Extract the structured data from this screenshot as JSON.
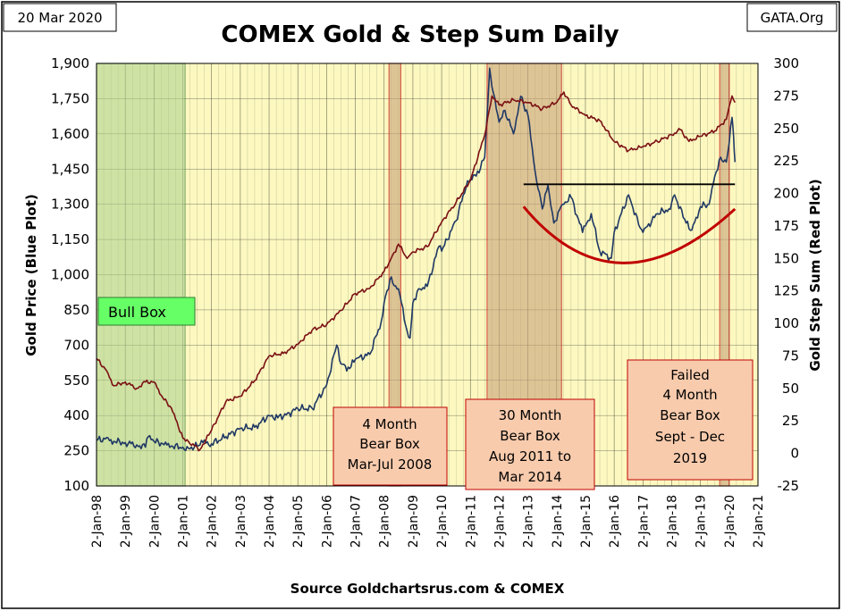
{
  "header": {
    "date": "20 Mar 2020",
    "title": "COMEX Gold & Step Sum Daily",
    "brand": "GATA.Org"
  },
  "footer": {
    "source": "Source Goldchartsrus.com & COMEX"
  },
  "colors": {
    "plot_bg": "#fcf8c0",
    "gold_line": "#1f3864",
    "step_line": "#7b1014",
    "bull_box": "#a9d18e",
    "bear_box": "#c9a27a",
    "callout_bg": "#f8cbad",
    "callout_border": "#c00000",
    "arc": "#c00000"
  },
  "chart_data": {
    "type": "line",
    "title": "COMEX Gold & Step Sum Daily",
    "xlabel": "",
    "ylabel_left": "Gold Price    (Blue Plot)",
    "ylabel_right": "Gold Step Sum    (Red Plot)",
    "x_ticks": [
      "2-Jan-98",
      "2-Jan-99",
      "2-Jan-00",
      "2-Jan-01",
      "2-Jan-02",
      "2-Jan-03",
      "2-Jan-04",
      "2-Jan-05",
      "2-Jan-06",
      "2-Jan-07",
      "2-Jan-08",
      "2-Jan-09",
      "2-Jan-10",
      "2-Jan-11",
      "2-Jan-12",
      "2-Jan-13",
      "2-Jan-14",
      "2-Jan-15",
      "2-Jan-16",
      "2-Jan-17",
      "2-Jan-18",
      "2-Jan-19",
      "2-Jan-20",
      "2-Jan-21"
    ],
    "xlim": [
      1998.0,
      2021.0
    ],
    "ylim_left": [
      100,
      1900
    ],
    "yticks_left": [
      100,
      250,
      400,
      550,
      700,
      850,
      1000,
      1150,
      1300,
      1450,
      1600,
      1750,
      1900
    ],
    "ylim_right": [
      -25,
      300
    ],
    "yticks_right": [
      -25,
      0,
      25,
      50,
      75,
      100,
      125,
      150,
      175,
      200,
      225,
      250,
      275,
      300
    ],
    "grid": true,
    "series": [
      {
        "name": "Gold Price",
        "axis": "left",
        "x": [
          1998.0,
          1998.3,
          1998.6,
          1999.0,
          1999.4,
          1999.7,
          1999.8,
          2000.0,
          2000.3,
          2000.6,
          2001.0,
          2001.2,
          2001.6,
          2001.7,
          2002.0,
          2002.5,
          2003.0,
          2003.5,
          2004.0,
          2004.3,
          2004.5,
          2005.0,
          2005.5,
          2006.0,
          2006.35,
          2006.5,
          2006.8,
          2007.0,
          2007.5,
          2007.9,
          2008.0,
          2008.2,
          2008.5,
          2008.8,
          2008.9,
          2009.0,
          2009.2,
          2009.5,
          2009.9,
          2010.0,
          2010.5,
          2010.9,
          2011.2,
          2011.5,
          2011.67,
          2011.75,
          2012.0,
          2012.2,
          2012.5,
          2012.75,
          2013.0,
          2013.3,
          2013.5,
          2013.7,
          2013.9,
          2014.2,
          2014.5,
          2014.9,
          2015.2,
          2015.5,
          2015.9,
          2016.0,
          2016.5,
          2016.9,
          2017.0,
          2017.5,
          2017.9,
          2018.1,
          2018.5,
          2018.7,
          2019.0,
          2019.3,
          2019.5,
          2019.7,
          2019.9,
          2020.0,
          2020.1,
          2020.15,
          2020.2
        ],
        "values": [
          295,
          300,
          290,
          285,
          275,
          265,
          310,
          290,
          280,
          270,
          265,
          260,
          275,
          285,
          280,
          310,
          345,
          350,
          400,
          390,
          395,
          430,
          430,
          530,
          700,
          620,
          600,
          640,
          660,
          800,
          880,
          980,
          940,
          760,
          730,
          880,
          940,
          950,
          1120,
          1100,
          1230,
          1400,
          1420,
          1500,
          1880,
          1800,
          1650,
          1700,
          1600,
          1760,
          1680,
          1400,
          1280,
          1380,
          1220,
          1300,
          1330,
          1180,
          1260,
          1100,
          1070,
          1180,
          1340,
          1200,
          1180,
          1260,
          1280,
          1340,
          1220,
          1190,
          1290,
          1300,
          1420,
          1500,
          1480,
          1560,
          1670,
          1590,
          1480
        ]
      },
      {
        "name": "Step Sum",
        "axis": "right",
        "x": [
          1998.0,
          1998.3,
          1998.6,
          1999.0,
          1999.4,
          1999.7,
          2000.0,
          2000.3,
          2000.6,
          2001.0,
          2001.2,
          2001.6,
          2002.0,
          2002.5,
          2003.0,
          2003.5,
          2004.0,
          2004.5,
          2005.0,
          2005.5,
          2006.0,
          2006.5,
          2007.0,
          2007.5,
          2008.0,
          2008.2,
          2008.5,
          2008.8,
          2009.0,
          2009.5,
          2010.0,
          2010.5,
          2011.0,
          2011.5,
          2011.75,
          2012.0,
          2012.5,
          2013.0,
          2013.5,
          2014.0,
          2014.25,
          2014.5,
          2015.0,
          2015.5,
          2016.0,
          2016.5,
          2017.0,
          2017.5,
          2018.0,
          2018.3,
          2018.6,
          2019.0,
          2019.5,
          2019.9,
          2020.0,
          2020.1,
          2020.2
        ],
        "values": [
          73,
          65,
          52,
          55,
          50,
          55,
          55,
          43,
          35,
          12,
          9,
          3,
          18,
          40,
          44,
          56,
          75,
          77,
          84,
          95,
          99,
          110,
          123,
          127,
          140,
          148,
          161,
          150,
          155,
          159,
          178,
          193,
          210,
          245,
          275,
          268,
          272,
          270,
          265,
          270,
          278,
          268,
          260,
          256,
          240,
          233,
          236,
          240,
          245,
          249,
          240,
          244,
          248,
          257,
          267,
          275,
          270
        ]
      }
    ],
    "annotations": [
      {
        "label": "Bull Box",
        "x_range": [
          1998.0,
          2001.08
        ],
        "color": "#a9d18e"
      },
      {
        "label": "4 Month Bear Box Mar-Jul 2008",
        "x_range": [
          2008.17,
          2008.58
        ],
        "color": "#c9a27a"
      },
      {
        "label": "30 Month Bear Box Aug 2011 to Mar 2014",
        "x_range": [
          2011.58,
          2014.17
        ],
        "color": "#c9a27a"
      },
      {
        "label": "Failed 4 Month Bear Box Sept - Dec 2019",
        "x_range": [
          2019.67,
          2020.0
        ],
        "color": "#c9a27a"
      }
    ],
    "reference_lines": [
      {
        "type": "horizontal",
        "axis": "left",
        "value": 1385,
        "x_range": [
          2012.85,
          2020.2
        ]
      },
      {
        "type": "arc",
        "axis": "left",
        "points": [
          [
            2012.85,
            1290
          ],
          [
            2016.3,
            1050
          ],
          [
            2020.2,
            1280
          ]
        ]
      }
    ]
  },
  "boxes": {
    "bull": "Bull Box",
    "bear1_lines": [
      "4 Month",
      "Bear Box",
      "Mar-Jul 2008"
    ],
    "bear2_lines": [
      "30 Month",
      "Bear Box",
      "Aug 2011 to",
      "Mar 2014"
    ],
    "bear3_lines": [
      "Failed",
      "4 Month",
      "Bear Box",
      "Sept - Dec",
      "2019"
    ]
  }
}
